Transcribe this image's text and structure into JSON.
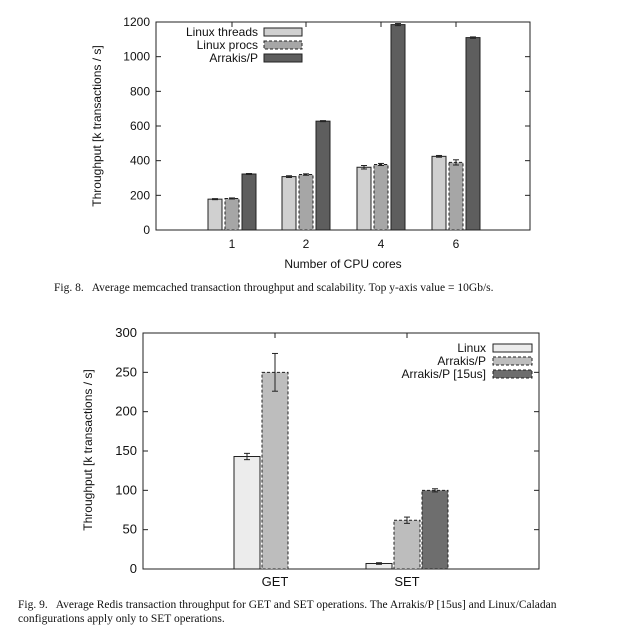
{
  "figures": [
    {
      "caption_number": "Fig. 8.",
      "caption_text": "Average memcached transaction throughput and scalability. Top y-axis value = 10Gb/s."
    },
    {
      "caption_number": "Fig. 9.",
      "caption_text": "Average Redis transaction throughput for GET and SET operations. The Arrakis/P [15us] and Linux/Caladan configurations apply only to SET operations."
    }
  ],
  "chart_data": [
    {
      "type": "bar",
      "title": "",
      "xlabel": "Number of CPU cores",
      "ylabel": "Throughput [k transactions / s]",
      "categories": [
        "1",
        "2",
        "4",
        "6"
      ],
      "ylim": [
        0,
        1200
      ],
      "yticks": [
        0,
        200,
        400,
        600,
        800,
        1000,
        1200
      ],
      "grid": false,
      "legend_position": "top-left",
      "series": [
        {
          "name": "Linux threads",
          "color": "#d0d0d0",
          "dashed": false,
          "values": [
            178,
            308,
            362,
            425
          ],
          "errors": [
            3,
            5,
            10,
            5
          ]
        },
        {
          "name": "Linux procs",
          "color": "#a6a6a6",
          "dashed": true,
          "values": [
            182,
            320,
            378,
            390
          ],
          "errors": [
            3,
            4,
            6,
            15
          ]
        },
        {
          "name": "Arrakis/P",
          "color": "#5e5e5e",
          "dashed": false,
          "values": [
            323,
            628,
            1185,
            1110
          ],
          "errors": [
            3,
            3,
            6,
            4
          ]
        }
      ]
    },
    {
      "type": "bar",
      "title": "",
      "xlabel": "",
      "ylabel": "Throughput [k transactions / s]",
      "categories": [
        "GET",
        "SET"
      ],
      "ylim": [
        0,
        300
      ],
      "yticks": [
        0,
        50,
        100,
        150,
        200,
        250,
        300
      ],
      "grid": false,
      "legend_position": "top-right",
      "series": [
        {
          "name": "Linux",
          "color": "#ececec",
          "dashed": false,
          "values": [
            143,
            7
          ],
          "errors": [
            4,
            1
          ]
        },
        {
          "name": "Arrakis/P",
          "color": "#bdbdbd",
          "dashed": true,
          "values": [
            250,
            62
          ],
          "errors": [
            24,
            4
          ]
        },
        {
          "name": "Arrakis/P [15us]",
          "color": "#6e6e6e",
          "dashed": true,
          "values": [
            null,
            100
          ],
          "errors": [
            null,
            2
          ]
        }
      ]
    }
  ]
}
